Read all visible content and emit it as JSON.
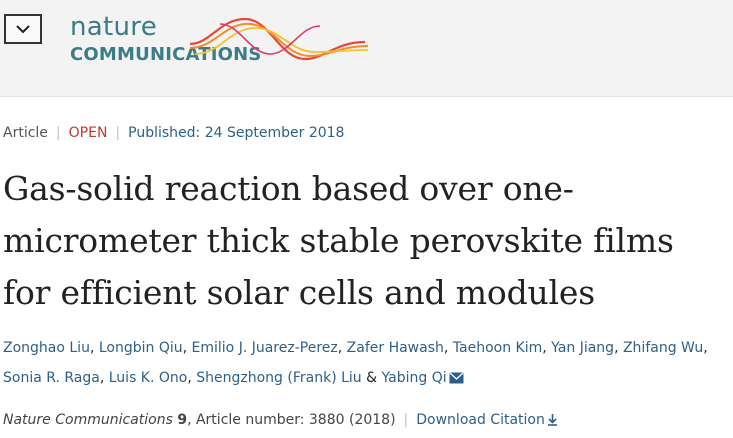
{
  "header": {
    "menu_icon": "chevron-down-icon",
    "logo": {
      "line1": "nature",
      "line2": "COMMUNICATIONS"
    }
  },
  "article_meta": {
    "type": "Article",
    "access": "OPEN",
    "published_label": "Published:",
    "published_date": "24 September 2018"
  },
  "title": "Gas-solid reaction based over one-micrometer thick stable perovskite films for efficient solar cells and modules",
  "authors": [
    "Zonghao Liu",
    "Longbin Qiu",
    "Emilio J. Juarez-Perez",
    "Zafer Hawash",
    "Taehoon Kim",
    "Yan Jiang",
    "Zhifang Wu",
    "Sonia R. Raga",
    "Luis K. Ono",
    "Shengzhong (Frank) Liu",
    "Yabing Qi"
  ],
  "author_sep": ", ",
  "author_and": " & ",
  "citation": {
    "journal": "Nature Communications",
    "volume": "9",
    "article_label": ", Article number: 3880 (2018)",
    "download": "Download Citation"
  },
  "colors": {
    "link": "#2d5f8a",
    "open": "#c0392b",
    "logo": "#3b7d86"
  }
}
